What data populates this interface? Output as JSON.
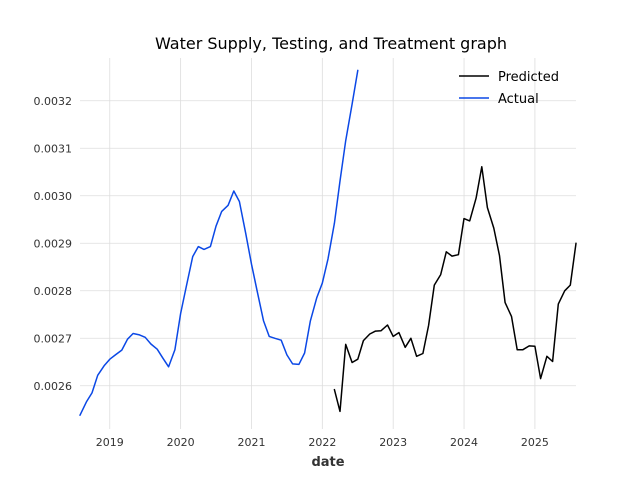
{
  "chart_data": {
    "type": "line",
    "title": "Water Supply, Testing, and Treatment graph",
    "xlabel": "date",
    "ylabel": "",
    "x_ticks": [
      "2019",
      "2020",
      "2021",
      "2022",
      "2023",
      "2024",
      "2025"
    ],
    "y_ticks": [
      "0.0026",
      "0.0027",
      "0.0028",
      "0.0029",
      "0.0030",
      "0.0031",
      "0.0032"
    ],
    "xlim": [
      2018.58,
      2025.58
    ],
    "ylim": [
      0.002509,
      0.00329
    ],
    "grid": true,
    "legend_position": "top-right",
    "series": [
      {
        "name": "Predicted",
        "color": "#000000",
        "x": [
          2022.17,
          2022.25,
          2022.33,
          2022.42,
          2022.5,
          2022.58,
          2022.67,
          2022.75,
          2022.83,
          2022.92,
          2023.0,
          2023.08,
          2023.17,
          2023.25,
          2023.33,
          2023.42,
          2023.5,
          2023.58,
          2023.67,
          2023.75,
          2023.83,
          2023.92,
          2024.0,
          2024.08,
          2024.17,
          2024.25,
          2024.33,
          2024.42,
          2024.5,
          2024.58,
          2024.67,
          2024.75,
          2024.83,
          2024.92,
          2025.0,
          2025.08,
          2025.17,
          2025.25,
          2025.33,
          2025.42,
          2025.5,
          2025.58
        ],
        "y": [
          0.002592,
          0.002546,
          0.002687,
          0.002649,
          0.002656,
          0.002695,
          0.002709,
          0.002715,
          0.002716,
          0.002728,
          0.002704,
          0.002712,
          0.002681,
          0.0027,
          0.002662,
          0.002668,
          0.002727,
          0.002812,
          0.002834,
          0.002882,
          0.002873,
          0.002876,
          0.002952,
          0.002947,
          0.002995,
          0.003061,
          0.002975,
          0.002932,
          0.002874,
          0.002775,
          0.002746,
          0.002676,
          0.002676,
          0.002684,
          0.002683,
          0.002615,
          0.002662,
          0.002651,
          0.002772,
          0.0028,
          0.002812,
          0.0029
        ]
      },
      {
        "name": "Actual",
        "color": "#0b48e6",
        "x": [
          2018.58,
          2018.67,
          2018.75,
          2018.83,
          2018.92,
          2019.0,
          2019.08,
          2019.17,
          2019.25,
          2019.33,
          2019.42,
          2019.5,
          2019.58,
          2019.67,
          2019.75,
          2019.83,
          2019.92,
          2020.0,
          2020.08,
          2020.17,
          2020.25,
          2020.33,
          2020.42,
          2020.5,
          2020.58,
          2020.67,
          2020.75,
          2020.83,
          2020.92,
          2021.0,
          2021.08,
          2021.17,
          2021.25,
          2021.33,
          2021.42,
          2021.5,
          2021.58,
          2021.67,
          2021.75,
          2021.83,
          2021.92,
          2022.0,
          2022.08,
          2022.17,
          2022.25,
          2022.33,
          2022.42,
          2022.5
        ],
        "y": [
          0.002538,
          0.002566,
          0.002585,
          0.002622,
          0.002642,
          0.002656,
          0.002665,
          0.002675,
          0.002698,
          0.00271,
          0.002707,
          0.002702,
          0.002688,
          0.002677,
          0.002658,
          0.00264,
          0.002676,
          0.002752,
          0.002809,
          0.002872,
          0.002893,
          0.002887,
          0.002893,
          0.002936,
          0.002967,
          0.00298,
          0.00301,
          0.002988,
          0.00292,
          0.002856,
          0.0028,
          0.002737,
          0.002704,
          0.0027,
          0.002696,
          0.002665,
          0.002646,
          0.002645,
          0.002669,
          0.002736,
          0.002785,
          0.002816,
          0.002867,
          0.002942,
          0.003031,
          0.003116,
          0.003193,
          0.003264
        ]
      }
    ]
  }
}
